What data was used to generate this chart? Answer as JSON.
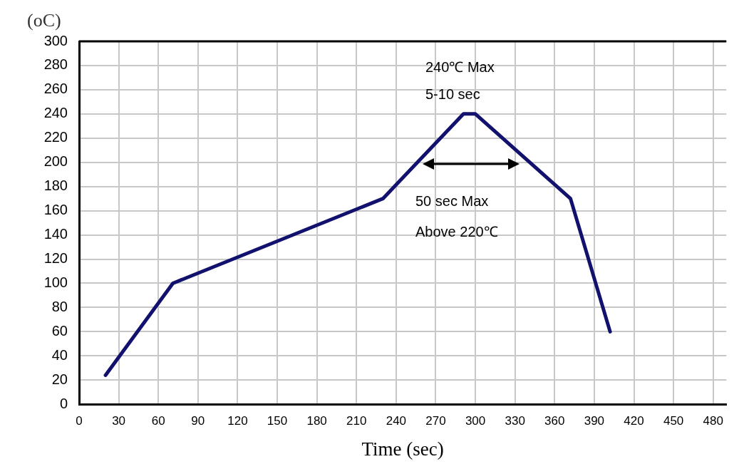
{
  "chart_data": {
    "type": "line",
    "xlabel": "Time (sec)",
    "ylabel": "(oC)",
    "x": [
      20,
      71,
      230,
      291,
      300,
      372,
      402
    ],
    "series": [
      {
        "color": "#12126e",
        "values": [
          24,
          100,
          170,
          240,
          240,
          170,
          60
        ]
      }
    ],
    "xlim": [
      0,
      490
    ],
    "xticks": [
      0,
      30,
      60,
      90,
      120,
      150,
      180,
      210,
      240,
      270,
      300,
      330,
      360,
      390,
      420,
      450,
      480
    ],
    "ylim": [
      0,
      300
    ],
    "yticks": [
      0,
      20,
      40,
      60,
      80,
      100,
      120,
      140,
      160,
      180,
      200,
      220,
      240,
      260,
      280,
      300
    ],
    "grid": true,
    "marker": "none",
    "line_style": "solid",
    "legend": false,
    "annotations": [
      "240℃ Max",
      "5-10 sec",
      "50 sec Max",
      "Above 220℃"
    ]
  }
}
